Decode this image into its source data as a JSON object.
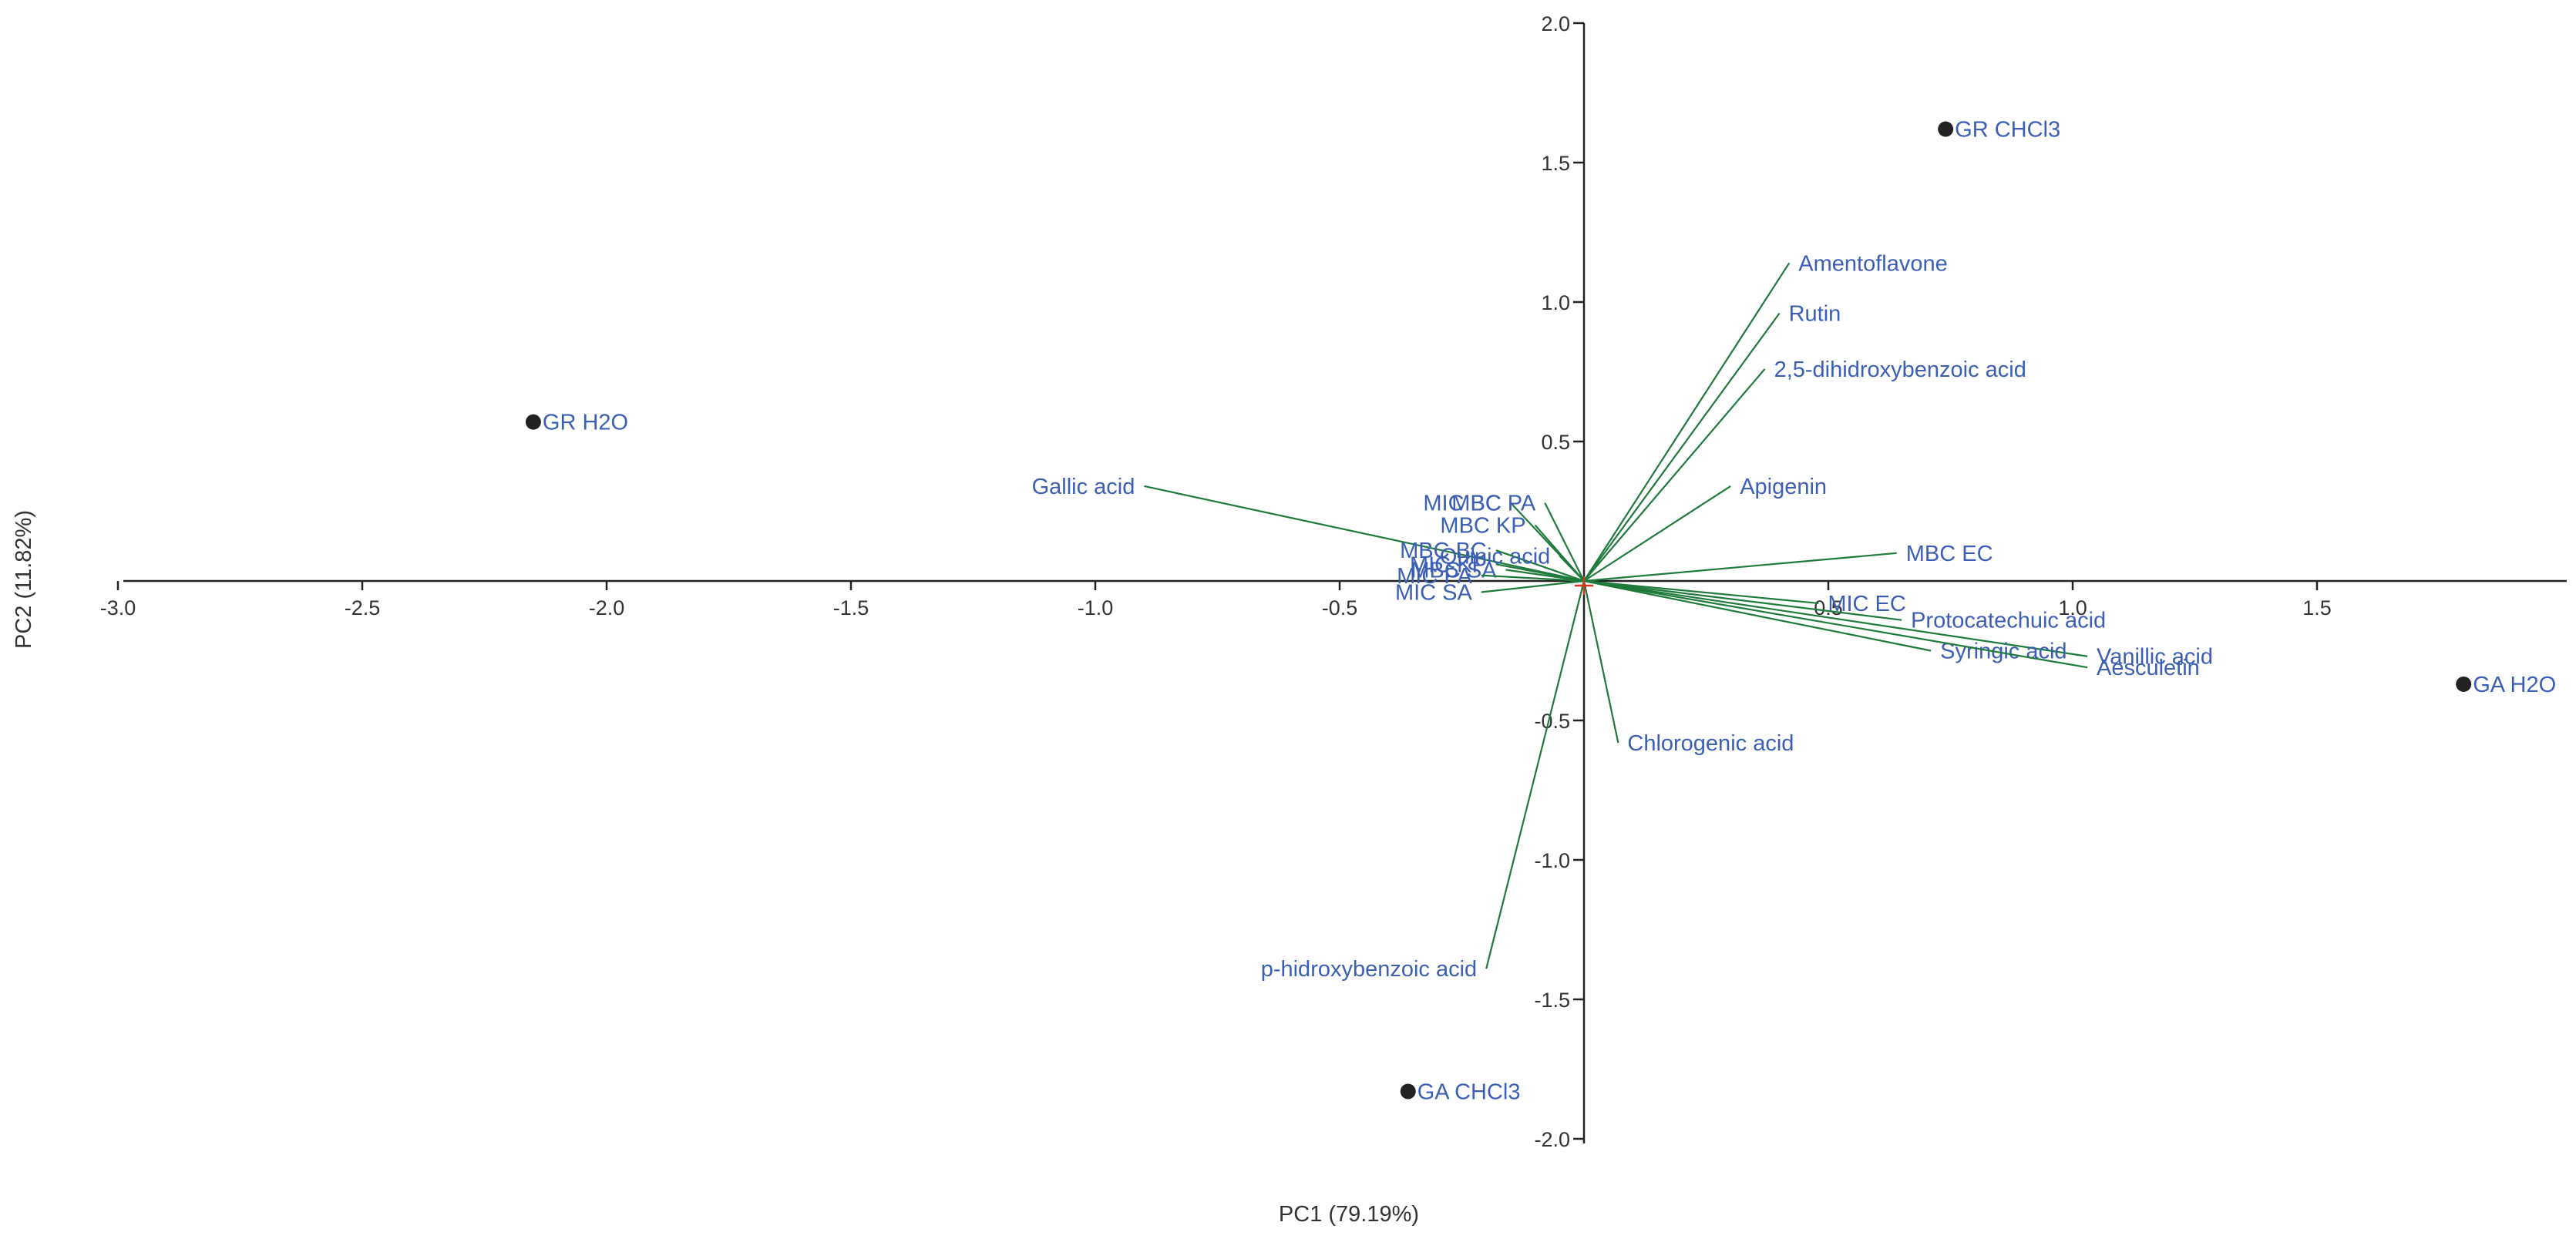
{
  "chart_data": {
    "type": "scatter",
    "subtype": "pca-biplot",
    "title": "",
    "xlabel": "PC1 (79.19%)",
    "ylabel": "PC2 (11.82%)",
    "xlim": [
      -3.0,
      2.0
    ],
    "ylim": [
      -2.0,
      2.0
    ],
    "xticks": [
      -3.0,
      -2.5,
      -2.0,
      -1.5,
      -1.0,
      -0.5,
      0.5,
      1.0,
      1.5
    ],
    "xtick_labels": [
      "-3.0",
      "-2.5",
      "-2.0",
      "-1.5",
      "-1.0",
      "-0.5",
      "0.5",
      "1.0",
      "1.5"
    ],
    "yticks": [
      -2.0,
      -1.5,
      -1.0,
      -0.5,
      0.5,
      1.0,
      1.5,
      2.0
    ],
    "ytick_labels": [
      "-2.0",
      "-1.5",
      "-1.0",
      "-0.5",
      "0.5",
      "1.0",
      "1.5",
      "2.0"
    ],
    "grid": false,
    "origin_marker": "+",
    "colors": {
      "point": "#222222",
      "vector": "#1f7a3c",
      "label": "#3a5fb4",
      "axis": "#222222",
      "origin": "#e03020"
    },
    "points": [
      {
        "name": "GR CHCl3",
        "x": 0.74,
        "y": 1.62
      },
      {
        "name": "GR H2O",
        "x": -2.15,
        "y": 0.57
      },
      {
        "name": "GA H2O",
        "x": 1.8,
        "y": -0.37
      },
      {
        "name": "GA CHCl3",
        "x": -0.36,
        "y": -1.83
      }
    ],
    "loadings": [
      {
        "name": "Amentoflavone",
        "x": 0.42,
        "y": 1.14
      },
      {
        "name": "Rutin",
        "x": 0.4,
        "y": 0.96
      },
      {
        "name": "2,5-dihidroxybenzoic acid",
        "x": 0.37,
        "y": 0.76
      },
      {
        "name": "Apigenin",
        "x": 0.3,
        "y": 0.34
      },
      {
        "name": "Gallic acid",
        "x": -0.9,
        "y": 0.34
      },
      {
        "name": "MIC BC",
        "x": -0.15,
        "y": 0.28
      },
      {
        "name": "MBC PA",
        "x": -0.08,
        "y": 0.28
      },
      {
        "name": "MBC KP",
        "x": -0.1,
        "y": 0.2
      },
      {
        "name": "MBC BC",
        "x": -0.18,
        "y": 0.11
      },
      {
        "name": "Quinic acid",
        "x": -0.05,
        "y": 0.09
      },
      {
        "name": "MIC KP",
        "x": -0.18,
        "y": 0.06
      },
      {
        "name": "MBC SA",
        "x": -0.16,
        "y": 0.04
      },
      {
        "name": "MIC PA",
        "x": -0.21,
        "y": 0.02
      },
      {
        "name": "MIC SA",
        "x": -0.21,
        "y": -0.04
      },
      {
        "name": "MBC EC",
        "x": 0.64,
        "y": 0.1
      },
      {
        "name": "MIC EC",
        "x": 0.48,
        "y": -0.08
      },
      {
        "name": "Protocatechuic acid",
        "x": 0.65,
        "y": -0.14
      },
      {
        "name": "Vanillic acid",
        "x": 1.03,
        "y": -0.27
      },
      {
        "name": "Syringic acid",
        "x": 0.71,
        "y": -0.25
      },
      {
        "name": "Aesculetin",
        "x": 1.03,
        "y": -0.31
      },
      {
        "name": "Chlorogenic acid",
        "x": 0.07,
        "y": -0.58
      },
      {
        "name": "p-hidroxybenzoic acid",
        "x": -0.2,
        "y": -1.39
      }
    ]
  }
}
